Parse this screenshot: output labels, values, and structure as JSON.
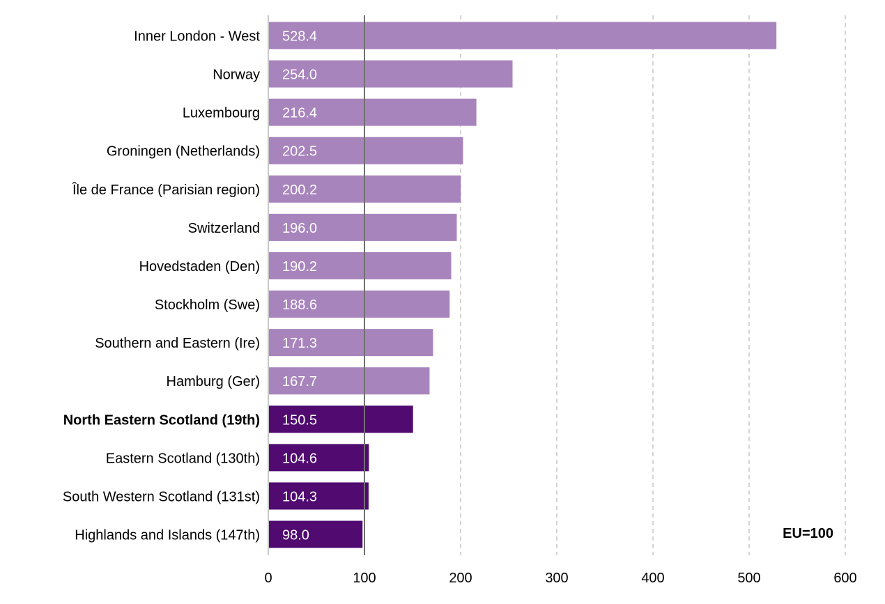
{
  "chart_data": {
    "type": "bar",
    "orientation": "horizontal",
    "title": "",
    "xlabel": "",
    "ylabel": "",
    "xlim": [
      0,
      600
    ],
    "xticks": [
      0,
      100,
      200,
      300,
      400,
      500,
      600
    ],
    "tick_labels": [
      "0",
      "100",
      "200",
      "300",
      "400",
      "500",
      "600"
    ],
    "grid": "vertical dashed",
    "reference_line": 100,
    "annotation": "EU=100",
    "categories": [
      "Inner London - West",
      "Norway",
      "Luxembourg",
      "Groningen (Netherlands)",
      "Île de France (Parisian region)",
      "Switzerland",
      "Hovedstaden (Den)",
      "Stockholm (Swe)",
      "Southern and Eastern (Ire)",
      "Hamburg (Ger)",
      "North Eastern Scotland (19th)",
      "Eastern Scotland (130th)",
      "South Western Scotland (131st)",
      "Highlands and Islands (147th)"
    ],
    "values": [
      528.4,
      254.0,
      216.4,
      202.5,
      200.2,
      196.0,
      190.2,
      188.6,
      171.3,
      167.7,
      150.5,
      104.6,
      104.3,
      98.0
    ],
    "value_labels": [
      "528.4",
      "254.0",
      "216.4",
      "202.5",
      "200.2",
      "196.0",
      "190.2",
      "188.6",
      "171.3",
      "167.7",
      "150.5",
      "104.6",
      "104.3",
      "98.0"
    ],
    "highlight": [
      false,
      false,
      false,
      false,
      false,
      false,
      false,
      false,
      false,
      false,
      true,
      true,
      true,
      true
    ],
    "bold": [
      false,
      false,
      false,
      false,
      false,
      false,
      false,
      false,
      false,
      false,
      true,
      false,
      false,
      false
    ],
    "colors": {
      "default": "#a884bd",
      "highlight": "#500a70",
      "reference": "#707070",
      "grid": "#bdbdbd"
    }
  }
}
